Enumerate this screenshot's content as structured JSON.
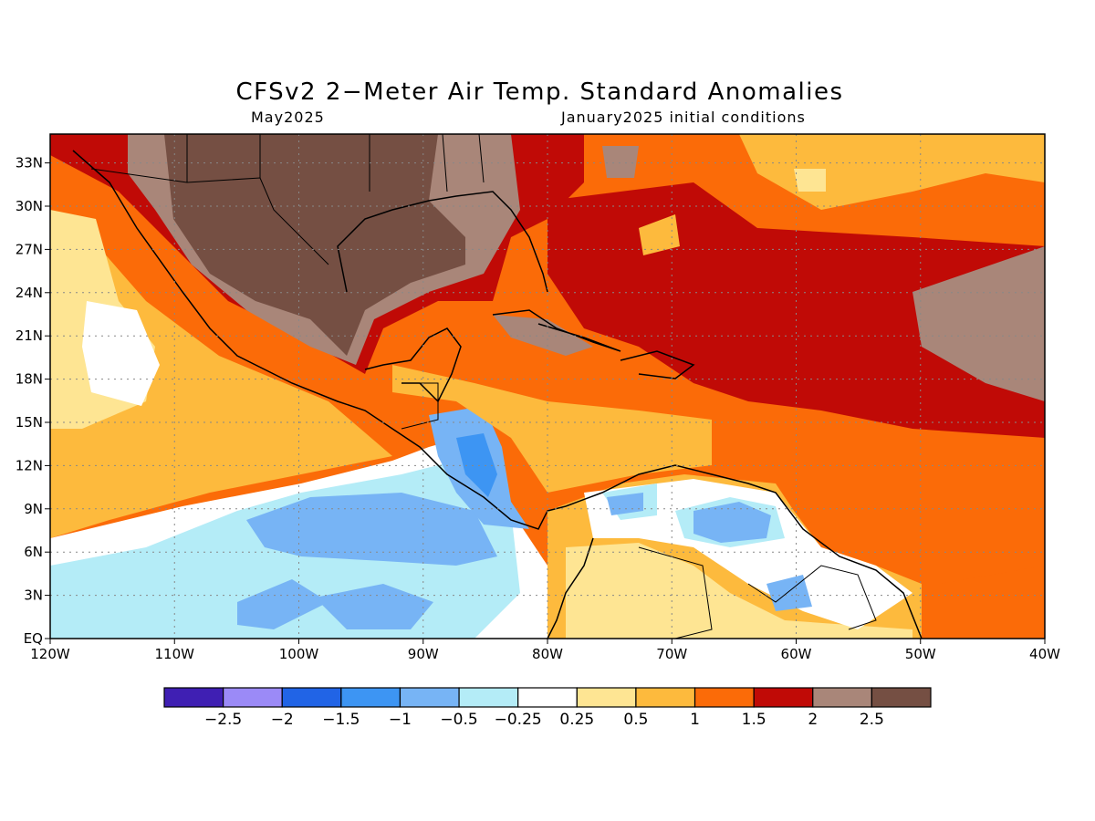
{
  "title": "CFSv2 2−Meter Air Temp. Standard Anomalies",
  "valid_month": "May2025",
  "initial_conditions": "January2025 initial conditions",
  "map": {
    "lon_labels": [
      "120W",
      "110W",
      "100W",
      "90W",
      "80W",
      "70W",
      "60W",
      "50W",
      "40W"
    ],
    "lat_labels": [
      "EQ",
      "3N",
      "6N",
      "9N",
      "12N",
      "15N",
      "18N",
      "21N",
      "24N",
      "27N",
      "30N",
      "33N"
    ],
    "extent": {
      "lon": [
        -120,
        -40
      ],
      "lat": [
        0,
        35
      ]
    },
    "gridlines": true
  },
  "colorbar": {
    "colors": [
      "#3f1fb3",
      "#9b8af7",
      "#2164e6",
      "#3d95f3",
      "#77b4f5",
      "#b4ecf7",
      "#ffffff",
      "#fee593",
      "#fdba3d",
      "#fb6b08",
      "#c00a06",
      "#a98679",
      "#754f43"
    ],
    "labels": [
      "−2.5",
      "−2",
      "−1.5",
      "−1",
      "−0.5",
      "−0.25",
      "0.25",
      "0.5",
      "1",
      "1.5",
      "2",
      "2.5"
    ]
  }
}
